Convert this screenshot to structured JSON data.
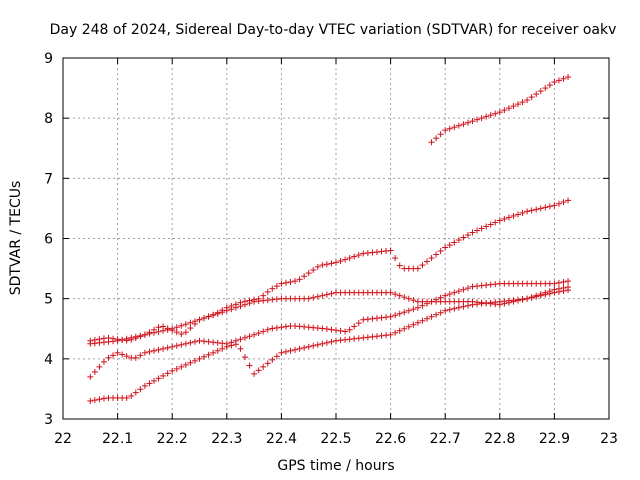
{
  "chart_data": {
    "type": "scatter",
    "title": "Day 248 of 2024, Sidereal Day-to-day VTEC variation (SDTVAR) for receiver oakv",
    "xlabel": "GPS time / hours",
    "ylabel": "SDTVAR / TECUs",
    "xlim": [
      22,
      23
    ],
    "ylim": [
      3,
      9
    ],
    "x_ticks": [
      "22",
      "22.1",
      "22.2",
      "22.3",
      "22.4",
      "22.5",
      "22.6",
      "22.7",
      "22.8",
      "22.9",
      "23"
    ],
    "y_ticks": [
      "3",
      "4",
      "5",
      "6",
      "7",
      "8",
      "9"
    ],
    "grid": true,
    "marker_color": "#d0101a",
    "series": [
      {
        "anchors": [
          [
            22.05,
            4.25
          ],
          [
            22.1,
            4.3
          ],
          [
            22.15,
            4.4
          ],
          [
            22.2,
            4.5
          ],
          [
            22.25,
            4.65
          ],
          [
            22.3,
            4.8
          ],
          [
            22.35,
            4.95
          ],
          [
            22.4,
            5.0
          ],
          [
            22.45,
            5.0
          ],
          [
            22.5,
            5.1
          ],
          [
            22.55,
            5.1
          ],
          [
            22.6,
            5.1
          ],
          [
            22.65,
            4.95
          ],
          [
            22.7,
            4.95
          ],
          [
            22.75,
            4.95
          ],
          [
            22.8,
            4.9
          ],
          [
            22.85,
            5.0
          ],
          [
            22.9,
            5.15
          ],
          [
            22.93,
            5.2
          ]
        ]
      },
      {
        "anchors": [
          [
            22.05,
            4.3
          ],
          [
            22.08,
            4.35
          ],
          [
            22.12,
            4.3
          ],
          [
            22.15,
            4.4
          ],
          [
            22.18,
            4.55
          ],
          [
            22.22,
            4.4
          ],
          [
            22.25,
            4.65
          ],
          [
            22.28,
            4.75
          ],
          [
            22.3,
            4.85
          ],
          [
            22.33,
            4.95
          ],
          [
            22.36,
            5.0
          ],
          [
            22.38,
            5.15
          ],
          [
            22.4,
            5.25
          ],
          [
            22.43,
            5.3
          ],
          [
            22.47,
            5.55
          ],
          [
            22.5,
            5.6
          ],
          [
            22.55,
            5.75
          ],
          [
            22.6,
            5.8
          ],
          [
            22.62,
            5.5
          ],
          [
            22.65,
            5.5
          ],
          [
            22.7,
            5.85
          ],
          [
            22.75,
            6.1
          ],
          [
            22.8,
            6.3
          ],
          [
            22.85,
            6.45
          ],
          [
            22.9,
            6.55
          ],
          [
            22.93,
            6.65
          ]
        ]
      },
      {
        "anchors": [
          [
            22.05,
            3.7
          ],
          [
            22.08,
            4.0
          ],
          [
            22.1,
            4.1
          ],
          [
            22.13,
            4.0
          ],
          [
            22.15,
            4.1
          ],
          [
            22.2,
            4.2
          ],
          [
            22.25,
            4.3
          ],
          [
            22.3,
            4.25
          ],
          [
            22.35,
            4.4
          ],
          [
            22.38,
            4.5
          ],
          [
            22.42,
            4.55
          ],
          [
            22.48,
            4.5
          ],
          [
            22.52,
            4.45
          ],
          [
            22.55,
            4.65
          ],
          [
            22.6,
            4.7
          ],
          [
            22.65,
            4.85
          ],
          [
            22.7,
            5.05
          ],
          [
            22.75,
            5.2
          ],
          [
            22.8,
            5.25
          ],
          [
            22.85,
            5.25
          ],
          [
            22.9,
            5.25
          ],
          [
            22.93,
            5.3
          ]
        ]
      },
      {
        "anchors": [
          [
            22.05,
            3.3
          ],
          [
            22.08,
            3.35
          ],
          [
            22.12,
            3.35
          ],
          [
            22.15,
            3.55
          ],
          [
            22.2,
            3.8
          ],
          [
            22.25,
            4.0
          ],
          [
            22.3,
            4.2
          ],
          [
            22.32,
            4.25
          ],
          [
            22.35,
            3.75
          ],
          [
            22.4,
            4.1
          ],
          [
            22.45,
            4.2
          ],
          [
            22.5,
            4.3
          ],
          [
            22.55,
            4.35
          ],
          [
            22.6,
            4.4
          ],
          [
            22.65,
            4.6
          ],
          [
            22.7,
            4.8
          ],
          [
            22.75,
            4.9
          ],
          [
            22.8,
            4.95
          ],
          [
            22.85,
            5.0
          ],
          [
            22.9,
            5.1
          ],
          [
            22.93,
            5.15
          ]
        ]
      },
      {
        "anchors": [
          [
            22.675,
            7.6
          ],
          [
            22.7,
            7.8
          ],
          [
            22.75,
            7.95
          ],
          [
            22.8,
            8.1
          ],
          [
            22.85,
            8.3
          ],
          [
            22.9,
            8.6
          ],
          [
            22.93,
            8.7
          ]
        ]
      }
    ]
  }
}
